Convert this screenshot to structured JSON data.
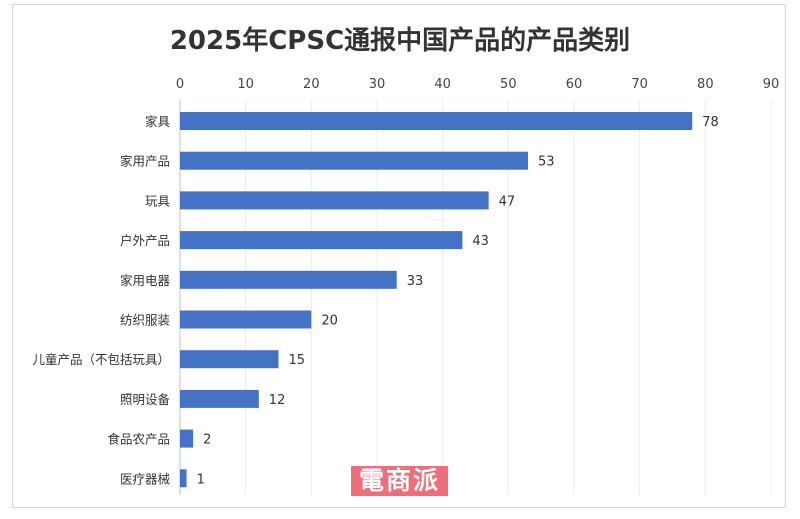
{
  "chart_data": {
    "type": "bar",
    "orientation": "horizontal",
    "title": "2025年CPSC通报中国产品的产品类别",
    "categories": [
      "家具",
      "家用产品",
      "玩具",
      "户外产品",
      "家用电器",
      "纺织服装",
      "儿童产品（不包括玩具）",
      "照明设备",
      "食品农产品",
      "医疗器械"
    ],
    "values": [
      78,
      53,
      47,
      43,
      33,
      20,
      15,
      12,
      2,
      1
    ],
    "xlim": [
      0,
      90
    ],
    "xticks": [
      0,
      10,
      20,
      30,
      40,
      50,
      60,
      70,
      80,
      90
    ],
    "xaxis_position": "top",
    "grid": true,
    "data_labels": true,
    "bar_color": "#4472c4"
  },
  "watermark": {
    "text": "電商派",
    "color": "#ec6f7a"
  }
}
